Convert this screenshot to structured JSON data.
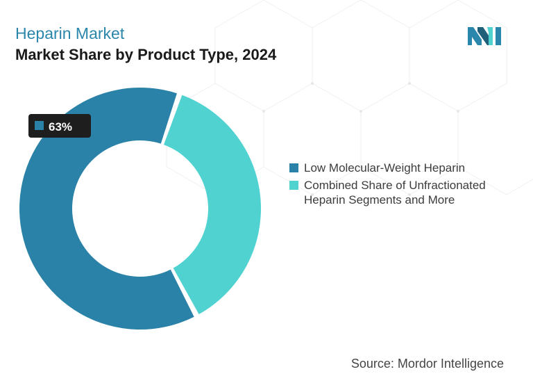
{
  "header": {
    "title": "Heparin Market",
    "subtitle": "Market Share by Product Type, 2024"
  },
  "source": "Source: Mordor Intelligence",
  "colors": {
    "title": "#2a86ab",
    "series_1": "#2a82a8",
    "series_2": "#4fd2d0",
    "callout_bg": "#1e1e1e"
  },
  "logo": {
    "icon": "mordor-intelligence-logo-icon"
  },
  "chart_data": {
    "type": "pie",
    "donut": true,
    "title": "Market Share by Product Type, 2024",
    "legend_position": "right",
    "slices": [
      {
        "label": "Low Molecular-Weight Heparin",
        "value": 63,
        "color": "#2a82a8",
        "data_label": "63%"
      },
      {
        "label": "Combined Share of Unfractionated Heparin Segments and More",
        "value": 37,
        "color": "#4fd2d0",
        "data_label": ""
      }
    ]
  }
}
